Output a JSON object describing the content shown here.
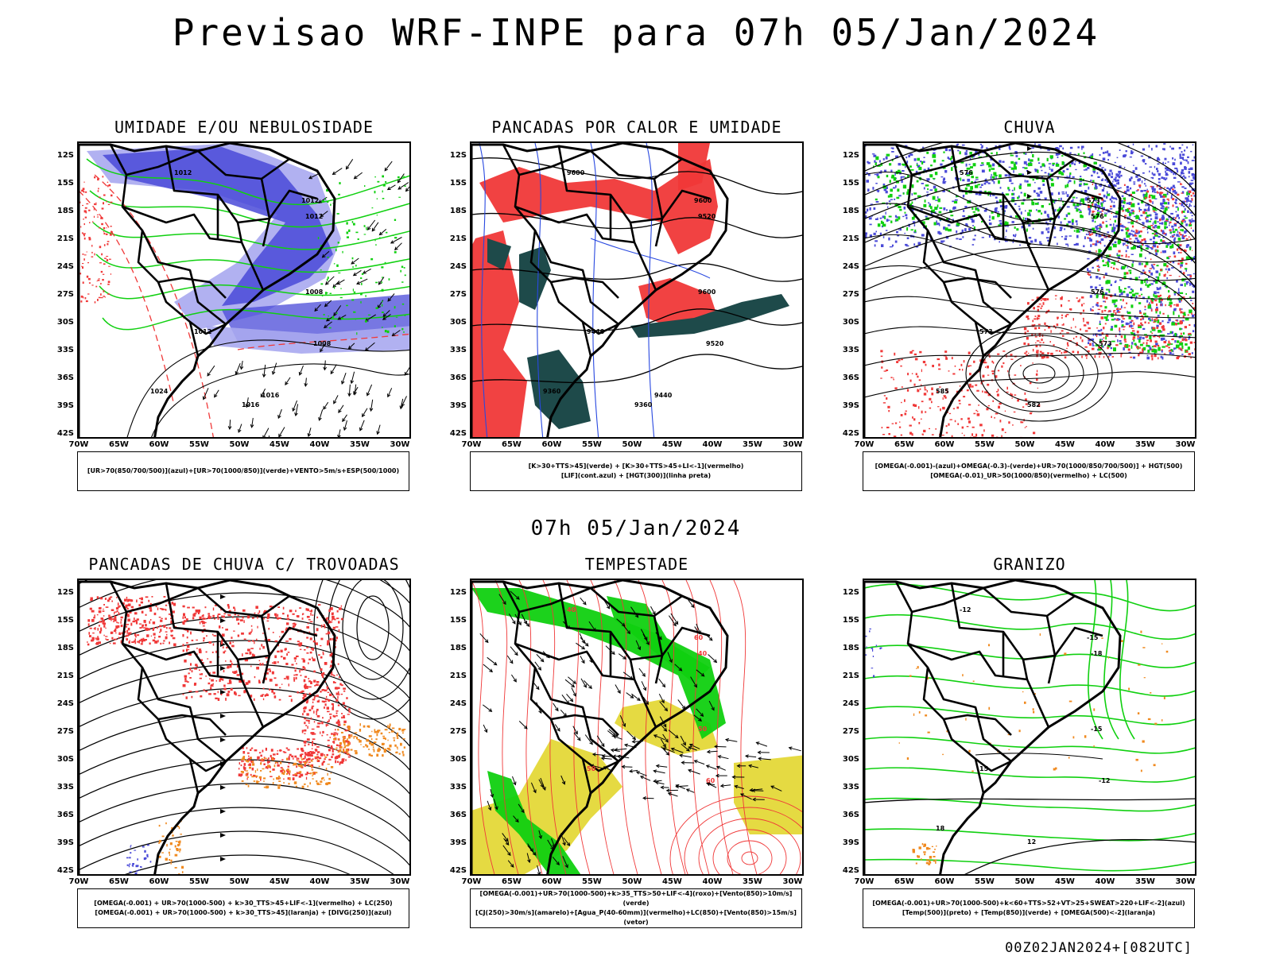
{
  "title": "Previsao WRF-INPE  para 07h 05/Jan/2024",
  "mid_title": "07h 05/Jan/2024",
  "footer": "00Z02JAN2024+[082UTC]",
  "lat_labels": [
    "12S",
    "15S",
    "18S",
    "21S",
    "24S",
    "27S",
    "30S",
    "33S",
    "36S",
    "39S",
    "42S"
  ],
  "lon_labels": [
    "70W",
    "65W",
    "60W",
    "55W",
    "50W",
    "45W",
    "40W",
    "35W",
    "30W"
  ],
  "colors": {
    "blue": "#4a4ad8",
    "light_blue": "#a8a8f0",
    "green": "#10d010",
    "red": "#f03838",
    "dark_teal": "#1e4a4a",
    "yellow": "#e4d838",
    "orange": "#f08a20"
  },
  "panels": [
    {
      "title": "UMIDADE E/OU NEBULOSIDADE",
      "legend": [
        "[UR>70(850/700/500)](azul)+[UR>70(1000/850)](verde)+VENTO>5m/s+ESP(500/1000)"
      ],
      "contour_labels": [
        "1012",
        "1012",
        "1012",
        "1008",
        "1008",
        "1012",
        "1016",
        "1024",
        "1016"
      ]
    },
    {
      "title": "PANCADAS POR CALOR E UMIDADE",
      "legend": [
        "[K>30+TTS>45](verde) + [K>30+TTS>45+LI<-1](vermelho)",
        "[LIF](cont.azul) + [HGT(300)](linha preta)"
      ],
      "contour_labels": [
        "9600",
        "9600",
        "9520",
        "9600",
        "9520",
        "9440",
        "9360",
        "9360",
        "9440"
      ]
    },
    {
      "title": "CHUVA",
      "legend": [
        "[OMEGA(-0.001)-(azul)+OMEGA(-0.3)-(verde)+UR>70(1000/850/700/500)] + HGT(500)",
        "[OMEGA(-0.01)_UR>50(1000/850)(vermelho) + LC(500)"
      ],
      "contour_labels": [
        "576",
        "573",
        "576",
        "576",
        "573",
        "573",
        "582",
        "585"
      ]
    },
    {
      "title": "PANCADAS DE CHUVA C/ TROVOADAS",
      "legend": [
        "[OMEGA(-0.001) + UR>70(1000-500) + k>30_TTS>45+LIF<-1](vermelho) + LC(250)",
        "[OMEGA(-0.001) + UR>70(1000-500) + k>30_TTS>45](laranja) + [DIVG(250)](azul)"
      ],
      "contour_labels": []
    },
    {
      "title": "TEMPESTADE",
      "legend": [
        "[OMEGA(-0.001)+UR>70(1000-500)+k>35_TTS>50+LIF<-4](roxo)+[Vento(850)>10m/s](verde)",
        "[CJ(250)>30m/s](amarelo)+[Agua_P(40-60mm)](vermelho)+LC(850)+[Vento(850)>15m/s](vetor)"
      ],
      "contour_labels": [
        "40",
        "60",
        "40",
        "50",
        "60",
        "50"
      ]
    },
    {
      "title": "GRANIZO",
      "legend": [
        "[OMEGA(-0.001)+UR>70(1000-500)+k<60+TTS>52+VT>25+SWEAT>220+LIF<-2](azul)",
        "[Temp(500)](preto) + [Temp(850)](verde) + [OMEGA(500)<-2](laranja)"
      ],
      "contour_labels": [
        "-12",
        "-15",
        "-18",
        "-15",
        "-12",
        "15",
        "12",
        "18"
      ]
    }
  ]
}
